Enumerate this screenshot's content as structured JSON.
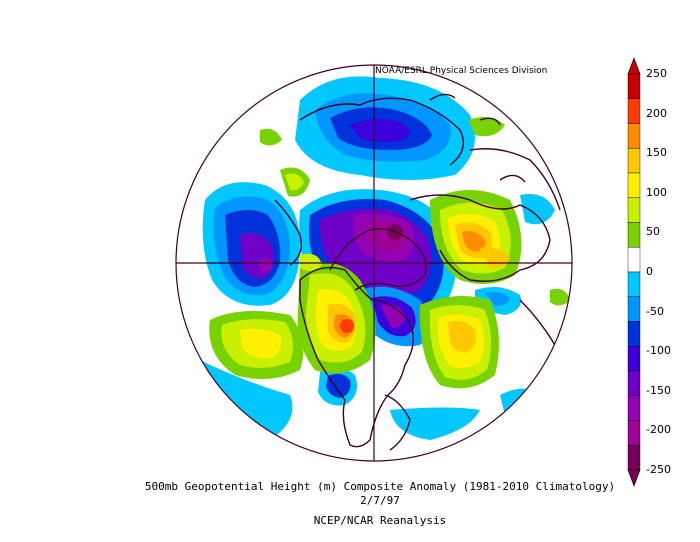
{
  "header": {
    "credit": "NOAA/ESRL Physical Sciences Division"
  },
  "caption": {
    "line1": "500mb Geopotential Height (m) Composite Anomaly (1981-2010 Climatology)",
    "line2": "2/7/97",
    "line3": "NCEP/NCAR Reanalysis"
  },
  "colorbar": {
    "labels": [
      "250",
      "200",
      "150",
      "100",
      "50",
      "0",
      "-50",
      "-100",
      "-150",
      "-200",
      "-250"
    ],
    "colors": [
      "#c80000",
      "#ff3c00",
      "#ff8c00",
      "#ffc800",
      "#fff000",
      "#c8f000",
      "#78d200",
      "#ffffff",
      "#00c8ff",
      "#0096ff",
      "#0032dc",
      "#3c00dc",
      "#6e00c8",
      "#9600b4",
      "#a00096",
      "#78005a"
    ]
  }
}
